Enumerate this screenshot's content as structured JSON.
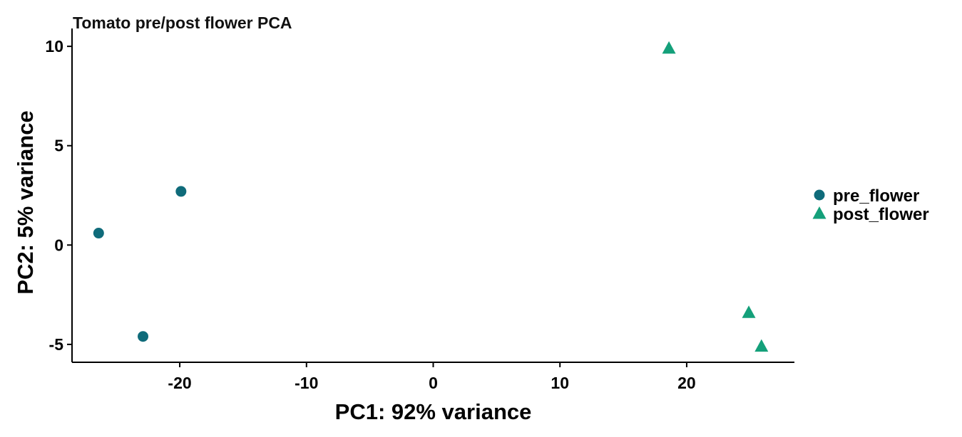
{
  "chart_data": {
    "type": "scatter",
    "title": "Tomato pre/post flower PCA",
    "xlabel": "PC1: 92% variance",
    "ylabel": "PC2: 5% variance",
    "xlim": [
      -28.5,
      28.5
    ],
    "ylim": [
      -5.9,
      10.9
    ],
    "xticks": [
      -20,
      -10,
      0,
      10,
      20
    ],
    "yticks": [
      -5,
      0,
      5,
      10
    ],
    "grid": false,
    "legend": "right",
    "series": [
      {
        "name": "pre_flower",
        "marker": "circle",
        "color": "#0f6b7a",
        "points": [
          {
            "x": -26.4,
            "y": 0.6
          },
          {
            "x": -19.9,
            "y": 2.7
          },
          {
            "x": -22.9,
            "y": -4.6
          }
        ]
      },
      {
        "name": "post_flower",
        "marker": "triangle",
        "color": "#14a07a",
        "points": [
          {
            "x": 18.6,
            "y": 9.9
          },
          {
            "x": 24.9,
            "y": -3.4
          },
          {
            "x": 25.9,
            "y": -5.1
          }
        ]
      }
    ]
  }
}
